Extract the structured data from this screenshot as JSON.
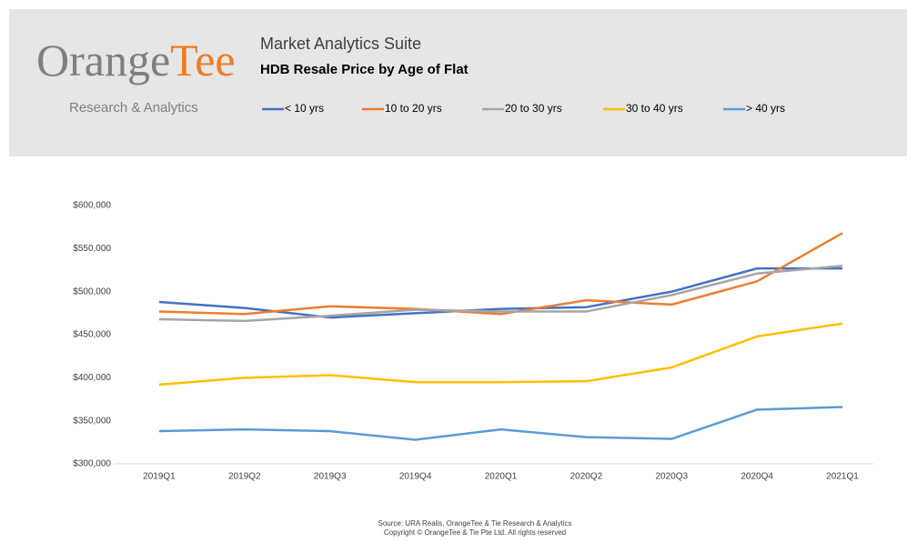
{
  "header": {
    "logo_left": "Orange",
    "logo_right": "Tee",
    "tagline": "Research & Analytics",
    "suite": "Market Analytics Suite"
  },
  "chart_data": {
    "type": "line",
    "title": "HDB Resale Price by Age of Flat",
    "categories": [
      "2019Q1",
      "2019Q2",
      "2019Q3",
      "2019Q4",
      "2020Q1",
      "2020Q2",
      "2020Q3",
      "2020Q4",
      "2021Q1"
    ],
    "series": [
      {
        "name": "< 10 yrs",
        "color": "#4472c4",
        "values": [
          488000,
          481000,
          470000,
          475000,
          480000,
          482000,
          500000,
          527000,
          527000
        ]
      },
      {
        "name": "10 to 20 yrs",
        "color": "#ed7d31",
        "values": [
          477000,
          474000,
          483000,
          480000,
          474000,
          490000,
          485000,
          512000,
          568000
        ]
      },
      {
        "name": "20 to 30 yrs",
        "color": "#a5a5a5",
        "values": [
          468000,
          466000,
          472000,
          479000,
          477000,
          477000,
          496000,
          521000,
          530000
        ]
      },
      {
        "name": "30 to 40 yrs",
        "color": "#ffc000",
        "values": [
          392000,
          400000,
          403000,
          395000,
          395000,
          396000,
          412000,
          448000,
          463000
        ]
      },
      {
        "name": "> 40 yrs",
        "color": "#5b9bd5",
        "values": [
          338000,
          340000,
          338000,
          328000,
          340000,
          331000,
          329000,
          363000,
          366000
        ]
      }
    ],
    "ylim": [
      300000,
      600000
    ],
    "yticks": [
      {
        "value": 300000,
        "label": "$300,000"
      },
      {
        "value": 350000,
        "label": "$350,000"
      },
      {
        "value": 400000,
        "label": "$400,000"
      },
      {
        "value": 450000,
        "label": "$450,000"
      },
      {
        "value": 500000,
        "label": "$500,000"
      },
      {
        "value": 550000,
        "label": "$550,000"
      },
      {
        "value": 600000,
        "label": "$600,000"
      }
    ],
    "source": [
      "Source: URA Realis, OrangeTee & Tie Research & Analytics",
      "Copyright © OrangeTee & Tie Pte Ltd. All rights reserved"
    ]
  }
}
